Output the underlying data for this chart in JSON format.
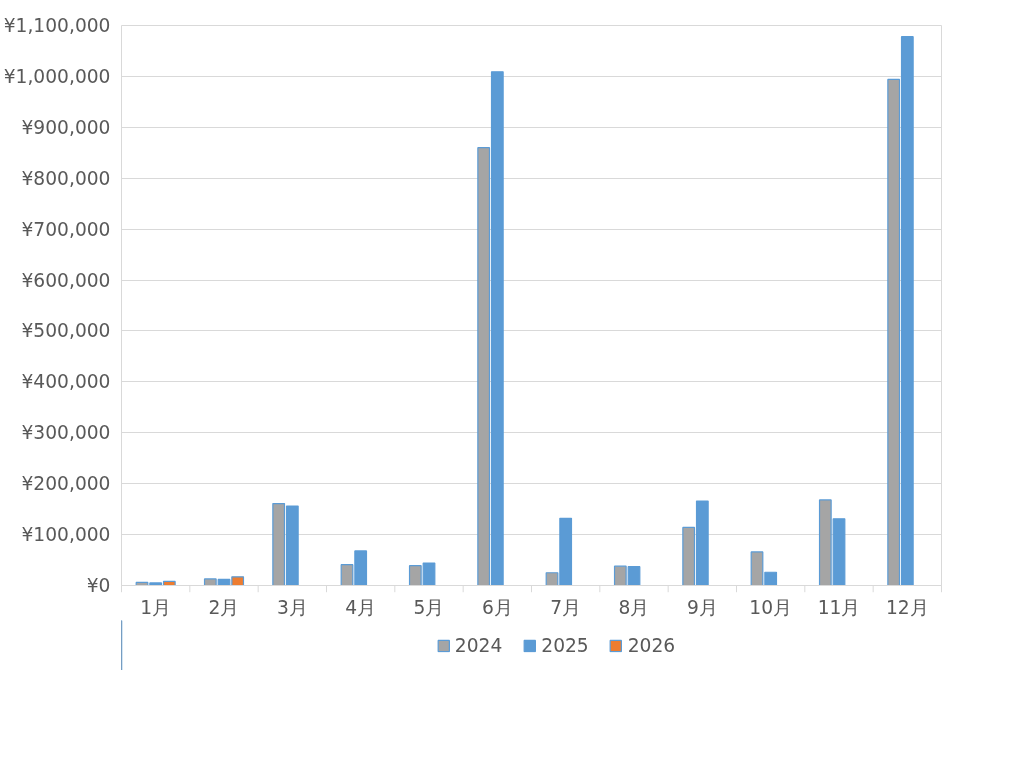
{
  "chart_data": {
    "type": "bar",
    "categories": [
      "1月",
      "2月",
      "3月",
      "4月",
      "5月",
      "6月",
      "7月",
      "8月",
      "9月",
      "10月",
      "11月",
      "12月"
    ],
    "series": [
      {
        "name": "2024",
        "color": "#a5a5a5",
        "values": [
          6000,
          13000,
          161000,
          41000,
          39000,
          860000,
          25000,
          38000,
          114000,
          66000,
          168000,
          994000
        ]
      },
      {
        "name": "2025",
        "color": "#5b9bd5",
        "values": [
          5000,
          12000,
          156000,
          68000,
          44000,
          1009000,
          132000,
          37000,
          166000,
          26000,
          131000,
          1078000
        ]
      },
      {
        "name": "2026",
        "color": "#ed7d31",
        "values": [
          8000,
          17000,
          null,
          null,
          null,
          null,
          null,
          null,
          null,
          null,
          null,
          null
        ]
      }
    ],
    "ylim": [
      0,
      1100000
    ],
    "yticks": [
      {
        "value": 0,
        "label": "¥0"
      },
      {
        "value": 100000,
        "label": "¥100,000"
      },
      {
        "value": 200000,
        "label": "¥200,000"
      },
      {
        "value": 300000,
        "label": "¥300,000"
      },
      {
        "value": 400000,
        "label": "¥400,000"
      },
      {
        "value": 500000,
        "label": "¥500,000"
      },
      {
        "value": 600000,
        "label": "¥600,000"
      },
      {
        "value": 700000,
        "label": "¥700,000"
      },
      {
        "value": 800000,
        "label": "¥800,000"
      },
      {
        "value": 900000,
        "label": "¥900,000"
      },
      {
        "value": 1000000,
        "label": "¥1,000,000"
      },
      {
        "value": 1100000,
        "label": "¥1,100,000"
      }
    ],
    "grid": "y",
    "legend": "bottom"
  }
}
